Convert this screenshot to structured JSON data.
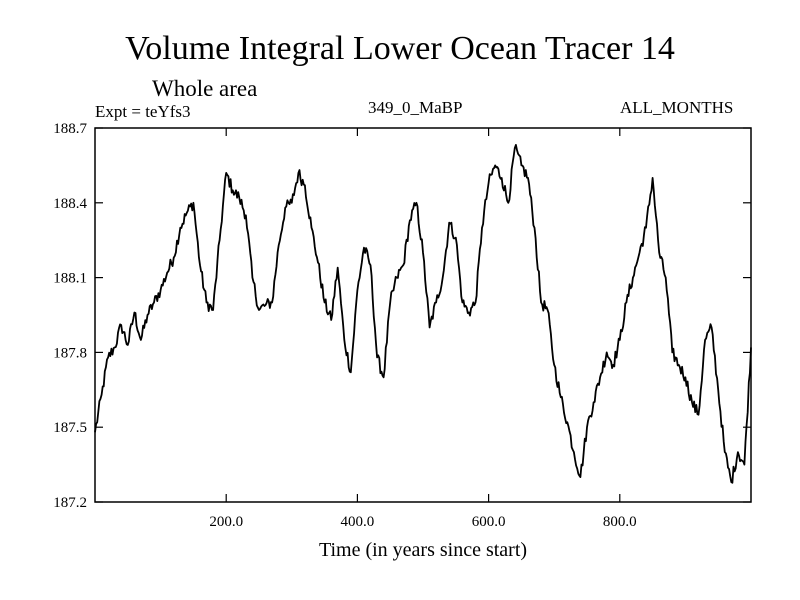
{
  "chart_data": {
    "type": "line",
    "title": "Volume Integral Lower Ocean Tracer 14",
    "subtitle": "Whole area",
    "header_left": "Expt = teYfs3",
    "header_center": "349_0_MaBP",
    "header_right": "ALL_MONTHS",
    "xlabel": "Time (in years since start)",
    "ylabel": "",
    "xlim": [
      0,
      1000
    ],
    "ylim": [
      187.2,
      188.7
    ],
    "x_ticks": [
      200,
      400,
      600,
      800
    ],
    "x_tick_labels": [
      "200.0",
      "400.0",
      "600.0",
      "800.0"
    ],
    "y_ticks": [
      187.2,
      187.5,
      187.8,
      188.1,
      188.4,
      188.7
    ],
    "y_tick_labels": [
      "187.2",
      "187.5",
      "187.8",
      "188.1",
      "188.4",
      "188.7"
    ],
    "grid": false,
    "series": [
      {
        "name": "Volume Integral Lower Ocean Tracer 14",
        "x": [
          0,
          10,
          20,
          30,
          40,
          50,
          60,
          70,
          80,
          90,
          100,
          110,
          120,
          130,
          140,
          150,
          160,
          170,
          180,
          190,
          200,
          210,
          220,
          230,
          240,
          250,
          260,
          270,
          280,
          290,
          300,
          310,
          320,
          330,
          340,
          350,
          360,
          370,
          380,
          390,
          400,
          410,
          420,
          430,
          440,
          450,
          460,
          470,
          480,
          490,
          500,
          510,
          520,
          530,
          540,
          550,
          560,
          570,
          580,
          590,
          600,
          610,
          620,
          630,
          640,
          650,
          660,
          670,
          680,
          690,
          700,
          710,
          720,
          730,
          740,
          750,
          760,
          770,
          780,
          790,
          800,
          810,
          820,
          830,
          840,
          850,
          860,
          870,
          880,
          890,
          900,
          910,
          920,
          930,
          940,
          950,
          960,
          970,
          980,
          990,
          1000
        ],
        "values": [
          187.48,
          187.63,
          187.78,
          187.82,
          187.91,
          187.83,
          187.96,
          187.85,
          187.95,
          188.0,
          188.05,
          188.12,
          188.18,
          188.3,
          188.36,
          188.4,
          188.15,
          188.0,
          187.97,
          188.25,
          188.52,
          188.45,
          188.42,
          188.35,
          188.1,
          187.97,
          187.99,
          188.0,
          188.23,
          188.38,
          188.4,
          188.52,
          188.47,
          188.3,
          188.16,
          188.0,
          187.93,
          188.14,
          187.85,
          187.72,
          188.05,
          188.22,
          188.15,
          187.78,
          187.7,
          188.0,
          188.1,
          188.15,
          188.33,
          188.4,
          188.2,
          187.9,
          188.0,
          188.1,
          188.32,
          188.26,
          188.0,
          187.96,
          188.0,
          188.3,
          188.48,
          188.55,
          188.5,
          188.4,
          188.62,
          188.55,
          188.5,
          188.3,
          188.0,
          187.97,
          187.75,
          187.62,
          187.52,
          187.4,
          187.3,
          187.5,
          187.6,
          187.7,
          187.8,
          187.75,
          187.85,
          188.0,
          188.1,
          188.2,
          188.3,
          188.5,
          188.2,
          188.1,
          187.8,
          187.75,
          187.7,
          187.6,
          187.55,
          187.85,
          187.9,
          187.65,
          187.4,
          187.28,
          187.4,
          187.35,
          187.82
        ]
      }
    ]
  }
}
